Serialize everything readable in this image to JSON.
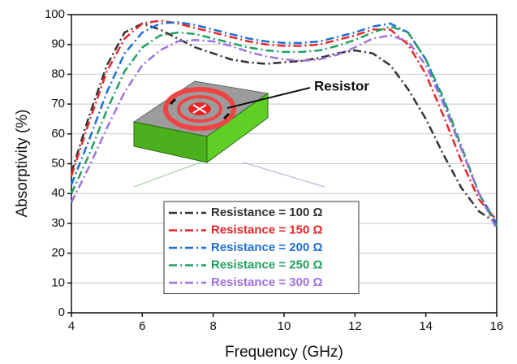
{
  "chart_data": {
    "type": "line",
    "x_label": "Frequency (GHz)",
    "y_label": "Absorptivity (%)",
    "annotation": "Resistor",
    "x": [
      4,
      4.5,
      5,
      5.5,
      6,
      6.5,
      7,
      7.5,
      8,
      8.5,
      9,
      9.5,
      10,
      10.5,
      11,
      11.5,
      12,
      12.5,
      13,
      13.5,
      14,
      14.5,
      15,
      15.5,
      16
    ],
    "series": [
      {
        "name": "Resistance = 100 Ω",
        "color": "#333333",
        "values": [
          47,
          66,
          83,
          94,
          97,
          95,
          92,
          89,
          87,
          85,
          84,
          83.5,
          84,
          84.5,
          85.5,
          87,
          88,
          87,
          83,
          75,
          65,
          53,
          42,
          34,
          30
        ]
      },
      {
        "name": "Resistance = 150 Ω",
        "color": "#e8262b",
        "values": [
          46,
          64,
          81,
          92,
          97,
          98,
          97,
          95.5,
          94,
          92.5,
          91,
          90,
          89.5,
          89.5,
          90,
          91.5,
          93,
          95,
          95,
          90,
          80,
          66,
          51,
          38,
          31
        ]
      },
      {
        "name": "Resistance = 200 Ω",
        "color": "#1e6fd6",
        "values": [
          43,
          58,
          74,
          87,
          94,
          97,
          97.5,
          96.5,
          95,
          93.5,
          92,
          91,
          90.5,
          90.5,
          91,
          92.5,
          94,
          96,
          97,
          94,
          85,
          71,
          55,
          40,
          30
        ]
      },
      {
        "name": "Resistance = 250 Ω",
        "color": "#22a060",
        "values": [
          40,
          53,
          68,
          81,
          89,
          93,
          94,
          93.5,
          92,
          90.5,
          89,
          88,
          87.5,
          87.5,
          88,
          89.5,
          91.5,
          94,
          96,
          94,
          85,
          72,
          56,
          40,
          29
        ]
      },
      {
        "name": "Resistance = 300 Ω",
        "color": "#a070e0",
        "values": [
          37,
          49,
          62,
          74,
          83,
          88,
          91,
          91.5,
          91,
          89.5,
          87.5,
          86,
          85,
          84.5,
          85,
          86.5,
          89,
          92,
          93,
          91,
          83,
          70,
          55,
          40,
          28
        ]
      }
    ],
    "xlim": [
      4,
      16
    ],
    "xticks": [
      4,
      6,
      8,
      10,
      12,
      14,
      16
    ],
    "ylim": [
      0,
      100
    ],
    "yticks": [
      0,
      10,
      20,
      30,
      40,
      50,
      60,
      70,
      80,
      90,
      100
    ],
    "grid": true
  }
}
